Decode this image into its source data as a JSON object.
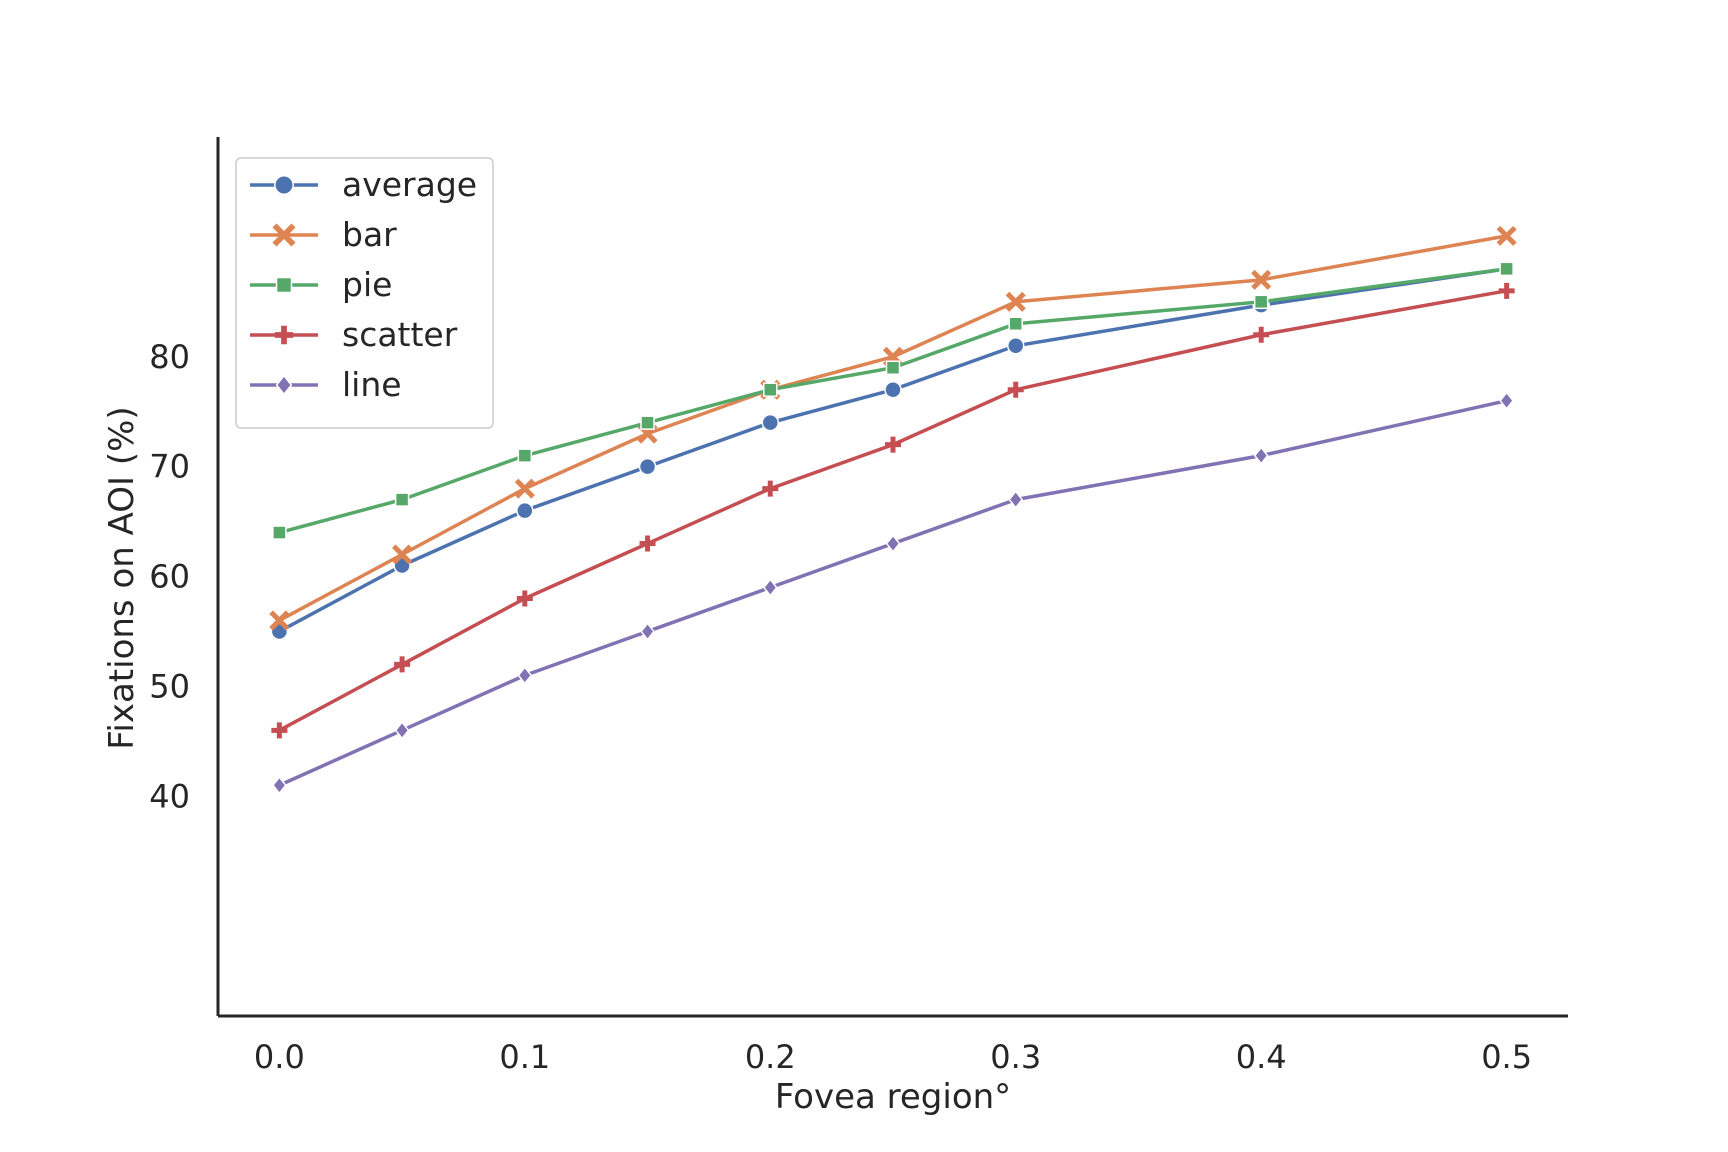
{
  "chart_data": {
    "type": "line",
    "title": "",
    "xlabel": "Fovea region°",
    "ylabel": "Fixations on AOI (%)",
    "x": [
      0.0,
      0.05,
      0.1,
      0.15,
      0.2,
      0.25,
      0.3,
      0.4,
      0.5
    ],
    "xticks": [
      "0.0",
      "0.1",
      "0.2",
      "0.3",
      "0.4",
      "0.5"
    ],
    "yticks": [
      "40",
      "50",
      "60",
      "70",
      "80"
    ],
    "xlim": [
      -0.025,
      0.525
    ],
    "ylim": [
      20,
      100
    ],
    "grid": false,
    "legend_position": "top-left",
    "series": [
      {
        "name": "average",
        "color": "#4c72b0",
        "marker": "circle",
        "values": [
          55,
          61,
          66,
          70,
          74,
          77,
          81,
          84.7,
          88
        ]
      },
      {
        "name": "bar",
        "color": "#dd8452",
        "marker": "x",
        "values": [
          56,
          62,
          68,
          73,
          77,
          80,
          85,
          87,
          91
        ]
      },
      {
        "name": "pie",
        "color": "#55a868",
        "marker": "square",
        "values": [
          64,
          67,
          71,
          74,
          77,
          79,
          83,
          85,
          88
        ]
      },
      {
        "name": "scatter",
        "color": "#c44e52",
        "marker": "plus",
        "values": [
          46,
          52,
          58,
          63,
          68,
          72,
          77,
          82,
          86
        ]
      },
      {
        "name": "line",
        "color": "#8172b3",
        "marker": "diamond",
        "values": [
          41,
          46,
          51,
          55,
          59,
          63,
          67,
          71,
          76
        ]
      }
    ]
  }
}
